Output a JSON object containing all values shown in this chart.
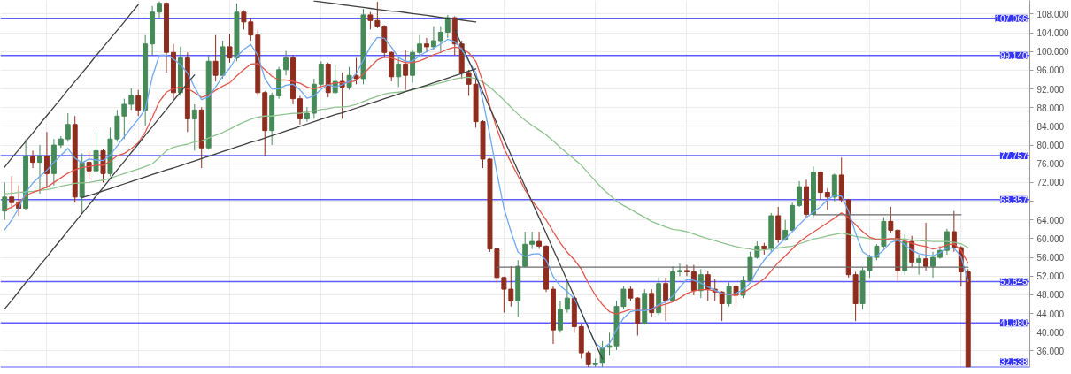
{
  "chart_data": {
    "type": "candlestick",
    "categories": [
      null,
      null,
      null,
      null,
      null,
      null,
      null,
      null,
      null,
      null,
      null,
      null,
      null,
      null,
      null,
      null,
      null,
      null,
      null,
      null,
      null,
      null,
      null,
      null,
      null,
      null,
      null,
      null,
      null,
      null,
      null,
      null,
      null,
      null,
      null,
      null,
      null,
      null,
      null,
      null,
      null,
      null,
      null,
      null,
      null,
      null,
      null,
      null,
      null,
      null,
      null,
      null,
      null,
      null,
      null,
      null,
      null,
      null,
      null,
      null,
      null,
      null,
      null,
      null,
      null,
      null,
      null,
      null,
      null,
      null,
      null,
      null,
      null,
      null,
      null,
      null,
      null,
      null,
      null,
      null,
      null,
      null,
      null,
      null,
      null,
      null,
      null,
      null,
      null,
      null,
      null,
      null,
      null,
      null,
      null,
      null,
      null,
      null,
      null,
      null,
      null,
      null,
      null,
      null,
      null,
      null,
      null,
      null,
      null,
      null,
      null,
      null,
      null,
      null,
      null,
      null,
      null,
      null,
      null,
      null,
      null,
      null,
      null,
      null,
      null,
      null,
      null,
      null,
      null,
      null,
      null,
      null,
      null,
      null,
      null,
      null,
      null,
      null
    ],
    "ohlc": [
      [
        65.9,
        72.0,
        64.0,
        68.9
      ],
      [
        68.9,
        73.3,
        66.5,
        67.7
      ],
      [
        67.7,
        71.4,
        64.9,
        66.5
      ],
      [
        66.5,
        81.3,
        66.2,
        77.6
      ],
      [
        77.6,
        78.8,
        75.1,
        76.3
      ],
      [
        76.3,
        80.0,
        69.6,
        77.6
      ],
      [
        77.6,
        82.8,
        70.8,
        73.9
      ],
      [
        73.9,
        81.3,
        71.4,
        80.0
      ],
      [
        80.0,
        81.9,
        79.4,
        81.3
      ],
      [
        81.3,
        86.8,
        80.7,
        84.4
      ],
      [
        84.4,
        86.2,
        67.7,
        68.9
      ],
      [
        68.9,
        78.2,
        65.2,
        76.3
      ],
      [
        76.3,
        78.8,
        72.6,
        74.5
      ],
      [
        74.5,
        82.8,
        73.9,
        78.8
      ],
      [
        78.8,
        79.1,
        72.0,
        73.9
      ],
      [
        73.9,
        83.7,
        73.3,
        81.3
      ],
      [
        81.3,
        87.5,
        80.7,
        86.2
      ],
      [
        86.2,
        89.9,
        81.3,
        88.7
      ],
      [
        88.7,
        92.1,
        87.5,
        90.5
      ],
      [
        90.5,
        91.8,
        86.2,
        87.5
      ],
      [
        87.5,
        103.5,
        84.1,
        101.6
      ],
      [
        101.6,
        109.7,
        99.2,
        108.4
      ],
      [
        108.4,
        110.7,
        107.2,
        110.3
      ],
      [
        110.3,
        110.5,
        95.5,
        99.8
      ],
      [
        99.8,
        101.6,
        89.9,
        91.2
      ],
      [
        91.2,
        101.0,
        90.5,
        98.6
      ],
      [
        98.6,
        99.8,
        82.8,
        85.6
      ],
      [
        85.6,
        88.7,
        78.8,
        87.5
      ],
      [
        87.5,
        88.1,
        75.1,
        79.4
      ],
      [
        79.4,
        99.2,
        79.1,
        97.9
      ],
      [
        97.9,
        103.5,
        93.6,
        94.9
      ],
      [
        94.9,
        102.3,
        94.2,
        101.0
      ],
      [
        101.0,
        103.8,
        97.6,
        98.6
      ],
      [
        98.6,
        110.3,
        97.9,
        108.4
      ],
      [
        108.4,
        108.8,
        104.7,
        106.3
      ],
      [
        106.3,
        107.2,
        102.3,
        103.5
      ],
      [
        103.5,
        104.7,
        90.5,
        91.2
      ],
      [
        91.2,
        91.5,
        77.6,
        83.1
      ],
      [
        83.1,
        91.2,
        80.0,
        90.5
      ],
      [
        90.5,
        96.7,
        89.9,
        96.1
      ],
      [
        96.1,
        100.1,
        94.9,
        98.6
      ],
      [
        98.6,
        99.2,
        88.7,
        89.9
      ],
      [
        89.9,
        90.5,
        84.4,
        85.6
      ],
      [
        85.6,
        88.1,
        85.0,
        86.8
      ],
      [
        86.8,
        94.2,
        85.6,
        93.0
      ],
      [
        93.0,
        97.9,
        92.4,
        97.3
      ],
      [
        97.3,
        97.6,
        90.2,
        91.2
      ],
      [
        91.2,
        97.0,
        90.9,
        93.6
      ],
      [
        93.6,
        95.5,
        85.6,
        92.4
      ],
      [
        92.4,
        96.7,
        91.8,
        94.9
      ],
      [
        94.9,
        98.6,
        93.0,
        94.2
      ],
      [
        94.2,
        109.1,
        93.0,
        107.8
      ],
      [
        107.8,
        108.4,
        104.7,
        106.6
      ],
      [
        106.6,
        110.6,
        105.0,
        105.4
      ],
      [
        105.4,
        105.6,
        98.6,
        99.8
      ],
      [
        99.8,
        100.0,
        93.6,
        94.6
      ],
      [
        94.6,
        98.6,
        92.4,
        97.3
      ],
      [
        97.3,
        100.4,
        91.8,
        94.9
      ],
      [
        94.9,
        100.4,
        93.3,
        99.8
      ],
      [
        99.8,
        103.5,
        99.2,
        101.6
      ],
      [
        101.6,
        102.9,
        99.8,
        101.0
      ],
      [
        101.0,
        105.4,
        100.4,
        102.3
      ],
      [
        102.3,
        105.4,
        99.8,
        104.1
      ],
      [
        104.1,
        107.8,
        102.9,
        107.2
      ],
      [
        107.2,
        107.5,
        99.2,
        101.6
      ],
      [
        101.6,
        102.3,
        94.2,
        95.5
      ],
      [
        95.5,
        96.1,
        90.5,
        93.0
      ],
      [
        93.0,
        94.2,
        83.7,
        85.0
      ],
      [
        85.0,
        85.3,
        75.1,
        77.0
      ],
      [
        77.0,
        77.2,
        57.2,
        57.8
      ],
      [
        57.8,
        58.0,
        50.4,
        51.7
      ],
      [
        51.7,
        51.9,
        44.2,
        49.2
      ],
      [
        49.2,
        54.1,
        45.5,
        46.7
      ],
      [
        46.7,
        55.4,
        43.3,
        54.1
      ],
      [
        54.1,
        61.5,
        53.9,
        58.8
      ],
      [
        58.8,
        61.5,
        57.8,
        59.4
      ],
      [
        59.4,
        61.5,
        57.8,
        58.4
      ],
      [
        58.4,
        58.6,
        48.6,
        49.2
      ],
      [
        49.2,
        49.8,
        37.5,
        40.5
      ],
      [
        40.5,
        46.7,
        39.9,
        44.9
      ],
      [
        44.9,
        50.7,
        44.2,
        47.3
      ],
      [
        47.3,
        47.5,
        39.9,
        41.2
      ],
      [
        41.2,
        41.8,
        34.4,
        35.6
      ],
      [
        35.6,
        36.0,
        32.6,
        33.1
      ],
      [
        33.1,
        34.4,
        32.6,
        33.4
      ],
      [
        33.4,
        38.1,
        32.6,
        36.8
      ],
      [
        36.8,
        39.9,
        35.0,
        37.1
      ],
      [
        37.1,
        46.7,
        36.2,
        45.5
      ],
      [
        45.5,
        49.8,
        44.9,
        49.2
      ],
      [
        49.2,
        49.8,
        46.7,
        47.3
      ],
      [
        47.3,
        47.5,
        39.3,
        41.8
      ],
      [
        41.8,
        49.2,
        41.6,
        48.3
      ],
      [
        48.3,
        49.2,
        43.3,
        44.2
      ],
      [
        44.2,
        51.7,
        43.6,
        50.4
      ],
      [
        50.4,
        51.7,
        42.4,
        46.7
      ],
      [
        46.7,
        54.1,
        46.5,
        52.9
      ],
      [
        52.9,
        54.7,
        52.0,
        53.2
      ],
      [
        53.2,
        54.4,
        52.0,
        52.9
      ],
      [
        52.9,
        54.4,
        47.9,
        48.9
      ],
      [
        48.9,
        53.5,
        47.3,
        52.3
      ],
      [
        52.3,
        53.2,
        46.7,
        49.2
      ],
      [
        49.2,
        51.3,
        46.7,
        48.6
      ],
      [
        48.6,
        48.8,
        42.4,
        46.1
      ],
      [
        46.1,
        50.7,
        45.5,
        49.8
      ],
      [
        49.8,
        50.4,
        45.5,
        47.9
      ],
      [
        47.9,
        52.0,
        47.3,
        51.0
      ],
      [
        51.0,
        57.2,
        50.7,
        56.0
      ],
      [
        56.0,
        59.4,
        55.7,
        58.4
      ],
      [
        58.4,
        59.1,
        56.6,
        57.8
      ],
      [
        57.8,
        65.5,
        57.2,
        64.9
      ],
      [
        64.9,
        66.8,
        59.1,
        59.7
      ],
      [
        59.7,
        64.0,
        59.5,
        61.8
      ],
      [
        61.8,
        67.7,
        61.6,
        67.1
      ],
      [
        67.1,
        72.3,
        66.8,
        71.1
      ],
      [
        71.1,
        72.6,
        64.6,
        65.2
      ],
      [
        65.2,
        75.4,
        64.6,
        74.2
      ],
      [
        74.2,
        74.4,
        68.3,
        69.9
      ],
      [
        69.9,
        70.8,
        66.2,
        68.9
      ],
      [
        68.9,
        73.9,
        68.0,
        73.6
      ],
      [
        73.6,
        77.3,
        67.7,
        68.3
      ],
      [
        68.3,
        68.5,
        51.7,
        52.3
      ],
      [
        52.3,
        52.9,
        42.4,
        46.1
      ],
      [
        46.1,
        53.8,
        44.9,
        53.2
      ],
      [
        53.2,
        56.6,
        51.7,
        56.0
      ],
      [
        56.0,
        58.8,
        55.4,
        58.4
      ],
      [
        58.4,
        64.6,
        57.8,
        63.7
      ],
      [
        63.7,
        66.8,
        61.2,
        61.8
      ],
      [
        61.8,
        62.0,
        51.0,
        53.2
      ],
      [
        53.2,
        60.9,
        52.3,
        59.4
      ],
      [
        59.4,
        60.6,
        53.8,
        55.0
      ],
      [
        55.0,
        56.6,
        52.3,
        55.7
      ],
      [
        55.7,
        63.4,
        53.2,
        54.1
      ],
      [
        54.1,
        57.2,
        51.7,
        56.0
      ],
      [
        56.0,
        58.4,
        55.7,
        57.5
      ],
      [
        57.5,
        62.1,
        56.6,
        61.5
      ],
      [
        61.5,
        65.9,
        57.2,
        58.1
      ],
      [
        58.1,
        58.4,
        49.8,
        52.9
      ],
      [
        52.9,
        53.5,
        32.6,
        32.6
      ]
    ],
    "colors": [
      "#458a58",
      "#8e2d1e",
      "#8e2d1e",
      "#458a58",
      "#8e2d1e",
      "#458a58",
      "#8e2d1e",
      "#458a58",
      "#458a58",
      "#458a58",
      "#8e2d1e",
      "#458a58",
      "#8e2d1e",
      "#458a58",
      "#8e2d1e",
      "#458a58",
      "#458a58",
      "#458a58",
      "#458a58",
      "#8e2d1e",
      "#458a58",
      "#458a58",
      "#458a58",
      "#8e2d1e",
      "#8e2d1e",
      "#458a58",
      "#8e2d1e",
      "#458a58",
      "#8e2d1e",
      "#458a58",
      "#8e2d1e",
      "#458a58",
      "#8e2d1e",
      "#458a58",
      "#8e2d1e",
      "#8e2d1e",
      "#8e2d1e",
      "#8e2d1e",
      "#458a58",
      "#458a58",
      "#458a58",
      "#8e2d1e",
      "#8e2d1e",
      "#458a58",
      "#458a58",
      "#458a58",
      "#8e2d1e",
      "#458a58",
      "#8e2d1e",
      "#458a58",
      "#8e2d1e",
      "#458a58",
      "#8e2d1e",
      "#8e2d1e",
      "#8e2d1e",
      "#8e2d1e",
      "#458a58",
      "#8e2d1e",
      "#458a58",
      "#458a58",
      "#8e2d1e",
      "#458a58",
      "#458a58",
      "#458a58",
      "#8e2d1e",
      "#8e2d1e",
      "#8e2d1e",
      "#8e2d1e",
      "#8e2d1e",
      "#8e2d1e",
      "#8e2d1e",
      "#8e2d1e",
      "#8e2d1e",
      "#458a58",
      "#458a58",
      "#458a58",
      "#8e2d1e",
      "#8e2d1e",
      "#8e2d1e",
      "#458a58",
      "#458a58",
      "#8e2d1e",
      "#8e2d1e",
      "#8e2d1e",
      "#458a58",
      "#458a58",
      "#458a58",
      "#458a58",
      "#458a58",
      "#8e2d1e",
      "#8e2d1e",
      "#458a58",
      "#8e2d1e",
      "#458a58",
      "#8e2d1e",
      "#458a58",
      "#458a58",
      "#8e2d1e",
      "#8e2d1e",
      "#458a58",
      "#8e2d1e",
      "#8e2d1e",
      "#8e2d1e",
      "#458a58",
      "#8e2d1e",
      "#458a58",
      "#458a58",
      "#458a58",
      "#8e2d1e",
      "#458a58",
      "#8e2d1e",
      "#458a58",
      "#458a58",
      "#458a58",
      "#8e2d1e",
      "#458a58",
      "#8e2d1e",
      "#8e2d1e",
      "#458a58",
      "#8e2d1e",
      "#8e2d1e",
      "#8e2d1e",
      "#458a58",
      "#458a58",
      "#458a58",
      "#458a58",
      "#8e2d1e",
      "#8e2d1e",
      "#458a58",
      "#8e2d1e",
      "#458a58",
      "#8e2d1e",
      "#458a58",
      "#458a58",
      "#458a58",
      "#8e2d1e",
      "#8e2d1e",
      "#8e2d1e"
    ],
    "series": [
      {
        "type": "line",
        "color": "#8fc48f",
        "values": [
          69.6,
          69.7,
          69.9,
          70.0,
          70.1,
          70.3,
          70.5,
          70.8,
          71.2,
          71.5,
          71.8,
          71.9,
          72.0,
          72.3,
          72.5,
          72.9,
          73.4,
          73.9,
          74.4,
          74.9,
          75.4,
          76.0,
          77.3,
          78.8,
          79.5,
          79.9,
          80.2,
          80.7,
          80.9,
          81.5,
          82.1,
          82.7,
          83.4,
          84.2,
          84.9,
          85.5,
          86.0,
          86.2,
          86.2,
          86.4,
          86.6,
          86.8,
          86.8,
          87.1,
          87.3,
          87.6,
          87.8,
          88.1,
          88.1,
          88.3,
          88.7,
          89.3,
          89.9,
          90.4,
          90.9,
          91.2,
          91.3,
          91.5,
          91.8,
          92.2,
          92.6,
          92.9,
          93.3,
          93.7,
          94.1,
          94.4,
          94.5,
          94.2,
          93.5,
          92.4,
          91.0,
          89.6,
          88.1,
          86.6,
          85.3,
          84.2,
          83.2,
          82.2,
          80.9,
          79.5,
          78.2,
          77.0,
          75.7,
          74.0,
          72.3,
          70.7,
          69.4,
          68.0,
          67.1,
          66.3,
          65.4,
          64.6,
          63.7,
          63.1,
          62.5,
          62.0,
          61.8,
          61.5,
          61.0,
          60.5,
          60.0,
          59.6,
          59.1,
          58.7,
          58.3,
          58.0,
          57.8,
          57.5,
          57.6,
          57.8,
          58.0,
          58.2,
          58.4,
          58.9,
          59.4,
          59.9,
          60.2,
          60.6,
          60.9,
          61.2,
          60.9,
          60.5,
          60.3,
          60.0,
          59.9,
          59.9,
          59.9,
          59.9,
          59.9,
          59.7,
          59.6,
          59.5,
          59.4,
          59.4,
          59.4,
          59.2,
          58.9,
          58.1
        ]
      },
      {
        "type": "line",
        "color": "#e2574c",
        "values": [
          66.1,
          66.7,
          67.7,
          69.2,
          69.9,
          70.4,
          71.0,
          72.0,
          73.0,
          74.0,
          74.7,
          75.2,
          75.4,
          75.7,
          75.7,
          76.5,
          77.7,
          78.2,
          79.2,
          80.5,
          82.8,
          85.9,
          89.3,
          91.3,
          92.1,
          92.4,
          92.1,
          91.2,
          90.2,
          90.7,
          91.7,
          92.6,
          93.3,
          94.8,
          96.1,
          97.3,
          97.4,
          96.1,
          94.7,
          93.9,
          93.9,
          93.6,
          93.2,
          92.4,
          92.0,
          92.5,
          92.9,
          93.3,
          93.3,
          93.4,
          93.8,
          95.2,
          96.7,
          98.2,
          98.8,
          98.6,
          98.1,
          97.6,
          97.6,
          98.0,
          98.6,
          99.3,
          99.8,
          100.5,
          100.9,
          100.7,
          99.7,
          97.9,
          93.5,
          88.3,
          83.4,
          79.3,
          76.3,
          73.4,
          70.4,
          68.1,
          66.2,
          64.0,
          61.5,
          59.1,
          57.1,
          55.5,
          53.5,
          50.5,
          47.9,
          45.9,
          44.4,
          43.9,
          44.4,
          44.9,
          45.0,
          44.9,
          44.9,
          45.6,
          46.0,
          46.5,
          47.3,
          48.3,
          48.8,
          49.1,
          49.1,
          48.8,
          48.3,
          48.0,
          47.9,
          48.4,
          49.4,
          50.4,
          51.4,
          53.1,
          54.9,
          56.3,
          57.8,
          59.3,
          60.4,
          61.4,
          62.4,
          63.4,
          64.4,
          65.5,
          64.5,
          63.0,
          61.5,
          60.3,
          59.8,
          59.8,
          60.0,
          60.0,
          59.5,
          59.0,
          58.6,
          58.3,
          57.8,
          58.1,
          58.7,
          58.9,
          57.5,
          54.8
        ]
      },
      {
        "type": "line",
        "color": "#6fa8f0",
        "values": [
          61.9,
          64.0,
          66.5,
          69.9,
          71.9,
          73.3,
          74.6,
          76.3,
          77.8,
          79.3,
          77.2,
          76.2,
          77.0,
          76.8,
          76.7,
          77.8,
          79.8,
          81.8,
          83.7,
          85.5,
          87.7,
          94.6,
          99.2,
          99.2,
          98.4,
          97.2,
          95.4,
          92.4,
          89.7,
          90.3,
          92.4,
          94.7,
          96.4,
          98.9,
          100.4,
          101.5,
          99.2,
          94.2,
          92.0,
          92.0,
          92.8,
          93.0,
          91.8,
          90.0,
          90.5,
          91.9,
          92.9,
          92.4,
          92.9,
          93.6,
          95.3,
          98.1,
          101.0,
          103.0,
          102.8,
          100.9,
          98.7,
          97.9,
          97.9,
          99.1,
          100.0,
          100.7,
          101.6,
          102.6,
          102.1,
          100.4,
          97.9,
          95.5,
          89.6,
          82.1,
          74.0,
          66.5,
          61.5,
          57.1,
          56.2,
          56.7,
          56.8,
          55.4,
          51.9,
          49.9,
          48.7,
          47.2,
          44.2,
          40.8,
          37.7,
          36.5,
          37.6,
          40.5,
          43.0,
          44.4,
          44.7,
          44.6,
          44.9,
          45.9,
          46.5,
          47.7,
          49.6,
          51.3,
          51.1,
          50.5,
          49.7,
          49.0,
          48.3,
          48.0,
          48.3,
          49.1,
          50.5,
          53.2,
          55.4,
          57.1,
          58.6,
          60.0,
          61.5,
          63.0,
          64.5,
          65.7,
          66.8,
          68.3,
          69.3,
          69.1,
          65.9,
          61.2,
          57.2,
          56.2,
          56.3,
          57.6,
          59.2,
          59.7,
          58.7,
          57.5,
          56.8,
          56.5,
          56.3,
          57.0,
          58.0,
          58.0,
          56.2,
          50.9
        ]
      },
      {
        "type": "line",
        "color": "#404040",
        "values": [
          75.3,
          77.2,
          79.0,
          80.8,
          82.6,
          84.5,
          86.3,
          88.1,
          89.9,
          91.8,
          93.6,
          95.4,
          97.2,
          99.1,
          100.9,
          102.7,
          104.5,
          106.3,
          108.2,
          110.0,
          null,
          null,
          null,
          null,
          null,
          null,
          null,
          null,
          null,
          null,
          null,
          null,
          null,
          null,
          null,
          null,
          null,
          null,
          null,
          null,
          null,
          null,
          null,
          null,
          null,
          null,
          null,
          null,
          null,
          null,
          null,
          null,
          null,
          null,
          null,
          null,
          null,
          null,
          null,
          null,
          null,
          null,
          null,
          null,
          null,
          null,
          null,
          null,
          null,
          null,
          null,
          null,
          null,
          null,
          null,
          null,
          null,
          null,
          null,
          null,
          null,
          null,
          null,
          null,
          null,
          null,
          null,
          null,
          null,
          null,
          null,
          null,
          null,
          null,
          null,
          null,
          null,
          null,
          null,
          null,
          null,
          null,
          null,
          null,
          null,
          null,
          null,
          null,
          null,
          null,
          null,
          null,
          null,
          null,
          null,
          null,
          null,
          null,
          null,
          null,
          null,
          null,
          null,
          null,
          null,
          null,
          null,
          null,
          null,
          null,
          null,
          null,
          null,
          null,
          null,
          null,
          null,
          null
        ]
      },
      {
        "type": "line",
        "color": "#404040",
        "values": [
          45.0,
          46.8,
          48.7,
          50.6,
          52.4,
          54.3,
          56.1,
          58.0,
          59.8,
          61.7,
          63.5,
          65.4,
          67.2,
          69.1,
          70.9,
          72.8,
          74.7,
          76.5,
          78.4,
          80.2,
          82.1,
          83.9,
          85.8,
          87.6,
          89.5,
          91.3,
          93.2,
          95.0,
          null,
          null,
          null,
          null,
          null,
          null,
          null,
          null,
          null,
          null,
          null,
          null,
          null,
          null,
          null,
          null,
          null,
          null,
          null,
          null,
          null,
          null,
          null,
          null,
          null,
          null,
          null,
          null,
          null,
          null,
          null,
          null,
          null,
          null,
          null,
          null,
          null,
          null,
          null,
          null,
          null,
          null,
          null,
          null,
          null,
          null,
          null,
          null,
          null,
          null,
          null,
          null,
          null,
          null,
          null,
          null,
          null,
          null,
          null,
          null,
          null,
          null,
          null,
          null,
          null,
          null,
          null,
          null,
          null,
          null,
          null,
          null,
          null,
          null,
          null,
          null,
          null,
          null,
          null,
          null,
          null,
          null,
          null,
          null,
          null,
          null,
          null,
          null,
          null,
          null,
          null,
          null,
          null,
          null,
          null,
          null,
          null,
          null,
          null,
          null,
          null,
          null,
          null,
          null,
          null,
          null,
          null,
          null,
          null,
          null
        ]
      },
      {
        "type": "line",
        "color": "#404040",
        "values": [
          null,
          null,
          null,
          null,
          null,
          null,
          null,
          null,
          null,
          null,
          null,
          68.8,
          69.2,
          69.7,
          70.2,
          70.7,
          71.2,
          71.7,
          72.2,
          72.7,
          73.2,
          73.7,
          74.2,
          74.7,
          75.1,
          75.6,
          76.1,
          76.6,
          77.1,
          77.6,
          78.1,
          78.6,
          79.1,
          79.6,
          80.1,
          80.6,
          81.0,
          81.5,
          82.0,
          82.5,
          83.0,
          83.5,
          84.0,
          84.5,
          85.0,
          85.5,
          86.0,
          86.5,
          86.9,
          87.4,
          87.9,
          88.4,
          88.9,
          89.4,
          89.9,
          90.4,
          90.9,
          91.4,
          91.9,
          92.3,
          92.8,
          93.3,
          93.8,
          94.3,
          94.8,
          95.3,
          95.8,
          96.3,
          null,
          null,
          null,
          null,
          null,
          null,
          null,
          null,
          null,
          null,
          null,
          null,
          null,
          null,
          null,
          null,
          null,
          null,
          null,
          null,
          null,
          null,
          null,
          null,
          null,
          null,
          null,
          null,
          null,
          null,
          null,
          null,
          null,
          null,
          null,
          null,
          null,
          null,
          null,
          null,
          null,
          null,
          null,
          null,
          null,
          null,
          null,
          null,
          null,
          null,
          null,
          null,
          null,
          null,
          null,
          null,
          null,
          null,
          null,
          null,
          null,
          null,
          null,
          null,
          null,
          null,
          null,
          null,
          null,
          null
        ]
      },
      {
        "type": "line",
        "color": "#404040",
        "values": [
          null,
          null,
          null,
          null,
          null,
          null,
          null,
          null,
          null,
          null,
          null,
          null,
          null,
          null,
          null,
          null,
          null,
          null,
          null,
          null,
          null,
          null,
          null,
          null,
          null,
          null,
          null,
          null,
          null,
          null,
          null,
          null,
          null,
          null,
          null,
          null,
          null,
          null,
          null,
          null,
          null,
          null,
          null,
          null,
          110.8,
          110.6,
          110.4,
          110.2,
          110.0,
          109.8,
          109.6,
          109.4,
          109.2,
          109.0,
          108.8,
          108.6,
          108.5,
          108.3,
          108.1,
          107.9,
          107.7,
          107.5,
          107.3,
          107.1,
          106.9,
          106.7,
          106.5,
          106.3,
          null,
          null,
          null,
          null,
          null,
          null,
          null,
          null,
          null,
          null,
          null,
          null,
          null,
          null,
          null,
          null,
          null,
          null,
          null,
          null,
          null,
          null,
          null,
          null,
          null,
          null,
          null,
          null,
          null,
          null,
          null,
          null,
          null,
          null,
          null,
          null,
          null,
          null,
          null,
          null,
          null,
          null,
          null,
          null,
          null,
          null,
          null,
          null,
          null,
          null,
          null,
          null,
          null,
          null,
          null,
          null,
          null,
          null,
          null,
          null,
          null,
          null,
          null,
          null,
          null,
          null,
          null,
          null,
          null,
          null
        ]
      },
      {
        "type": "line",
        "color": "#404040",
        "values": [
          null,
          null,
          null,
          null,
          null,
          null,
          null,
          null,
          null,
          null,
          null,
          null,
          null,
          null,
          null,
          null,
          null,
          null,
          null,
          null,
          null,
          null,
          null,
          null,
          null,
          null,
          null,
          null,
          null,
          null,
          null,
          null,
          null,
          null,
          null,
          null,
          null,
          null,
          null,
          null,
          null,
          null,
          null,
          null,
          null,
          null,
          null,
          null,
          null,
          null,
          null,
          null,
          null,
          null,
          null,
          null,
          null,
          null,
          null,
          null,
          null,
          null,
          null,
          null,
          104.7,
          101.3,
          98.0,
          94.6,
          91.3,
          87.9,
          84.6,
          81.2,
          77.9,
          74.5,
          71.2,
          67.8,
          64.5,
          61.1,
          57.7,
          54.4,
          51.0,
          47.7,
          44.3,
          41.0,
          37.6,
          34.3,
          null,
          null,
          null,
          null,
          null,
          null,
          null,
          null,
          null,
          null,
          null,
          null,
          null,
          null,
          null,
          null,
          null,
          null,
          null,
          null,
          null,
          null,
          null,
          null,
          null,
          null,
          null,
          null,
          null,
          null,
          null,
          null,
          null,
          null,
          null,
          null,
          null,
          null,
          null,
          null,
          null,
          null,
          null,
          null,
          null,
          null,
          null,
          null,
          null,
          null,
          null,
          null
        ]
      },
      {
        "type": "line",
        "color": "#6b6b6b",
        "values": [
          null,
          null,
          null,
          null,
          null,
          null,
          null,
          null,
          null,
          null,
          null,
          null,
          null,
          null,
          null,
          null,
          null,
          null,
          null,
          null,
          null,
          null,
          null,
          null,
          null,
          null,
          null,
          null,
          null,
          null,
          null,
          null,
          null,
          null,
          null,
          null,
          null,
          null,
          null,
          null,
          null,
          null,
          null,
          null,
          null,
          null,
          null,
          null,
          null,
          null,
          null,
          null,
          null,
          null,
          null,
          null,
          null,
          null,
          null,
          null,
          null,
          null,
          null,
          null,
          null,
          null,
          null,
          null,
          null,
          null,
          53.9,
          53.9,
          53.9,
          53.9,
          53.9,
          53.9,
          53.9,
          53.9,
          53.9,
          53.9,
          53.9,
          53.9,
          53.9,
          53.9,
          53.9,
          53.9,
          53.9,
          53.9,
          53.9,
          53.9,
          53.9,
          53.9,
          53.9,
          53.9,
          53.9,
          53.9,
          53.9,
          53.9,
          53.9,
          53.9,
          53.9,
          53.9,
          53.9,
          53.9,
          53.9,
          53.9,
          53.9,
          53.9,
          53.9,
          53.9,
          53.9,
          53.9,
          53.9,
          53.9,
          53.9,
          53.9,
          53.9,
          53.9,
          53.9,
          53.9,
          53.9,
          53.9,
          53.9,
          53.9,
          53.9,
          53.9,
          53.9,
          53.9,
          53.9,
          53.9,
          53.9,
          53.9,
          53.9,
          53.9,
          53.9,
          53.9,
          53.9,
          53.9
        ]
      },
      {
        "type": "line",
        "color": "#6b6b6b",
        "values": [
          null,
          null,
          null,
          null,
          null,
          null,
          null,
          null,
          null,
          null,
          null,
          null,
          null,
          null,
          null,
          null,
          null,
          null,
          null,
          null,
          null,
          null,
          null,
          null,
          null,
          null,
          null,
          null,
          null,
          null,
          null,
          null,
          null,
          null,
          null,
          null,
          null,
          null,
          null,
          null,
          null,
          null,
          null,
          null,
          null,
          null,
          null,
          null,
          null,
          null,
          null,
          null,
          null,
          null,
          null,
          null,
          null,
          null,
          null,
          null,
          null,
          null,
          null,
          null,
          null,
          null,
          null,
          null,
          null,
          null,
          null,
          null,
          null,
          null,
          null,
          null,
          null,
          null,
          null,
          null,
          null,
          null,
          null,
          null,
          null,
          null,
          null,
          null,
          null,
          null,
          null,
          null,
          null,
          null,
          null,
          null,
          null,
          null,
          null,
          null,
          null,
          null,
          null,
          null,
          null,
          null,
          null,
          null,
          null,
          null,
          null,
          null,
          null,
          null,
          null,
          65.1,
          65.1,
          65.1,
          65.1,
          65.1,
          65.1,
          65.1,
          65.1,
          65.1,
          65.1,
          65.1,
          65.1,
          65.1,
          65.1,
          65.1,
          65.1,
          65.1,
          65.1,
          65.1,
          65.1,
          65.1,
          65.1,
          null
        ]
      }
    ],
    "ylim": [
      32.5,
      110.9
    ],
    "yticks": [
      {
        "value": 36,
        "label": "36.000"
      },
      {
        "value": 40,
        "label": "40.000"
      },
      {
        "value": 44,
        "label": "44.000"
      },
      {
        "value": 48,
        "label": "48.000"
      },
      {
        "value": 52,
        "label": "52.000"
      },
      {
        "value": 56,
        "label": "56.000"
      },
      {
        "value": 60,
        "label": "60.000"
      },
      {
        "value": 64,
        "label": "64.000"
      },
      {
        "value": 68,
        "label": null
      },
      {
        "value": 72,
        "label": "72.000"
      },
      {
        "value": 76,
        "label": "76.000"
      },
      {
        "value": 80,
        "label": "80.000"
      },
      {
        "value": 84,
        "label": "84.000"
      },
      {
        "value": 88,
        "label": "88.000"
      },
      {
        "value": 92,
        "label": "92.000"
      },
      {
        "value": 96,
        "label": "96.000"
      },
      {
        "value": 100,
        "label": "100.000"
      },
      {
        "value": 104,
        "label": "104.000"
      },
      {
        "value": 108,
        "label": "108.000"
      }
    ],
    "ref_lines": [
      {
        "axis": "y",
        "value": 107.066,
        "label": "107.066",
        "color": "#3434ff"
      },
      {
        "axis": "y",
        "value": 99.14,
        "label": "99.140",
        "color": "#3434ff"
      },
      {
        "axis": "y",
        "value": 77.757,
        "label": "77.757",
        "color": "#3434ff"
      },
      {
        "axis": "y",
        "value": 68.357,
        "label": "68.357",
        "color": "#3434ff"
      },
      {
        "axis": "y",
        "value": 50.845,
        "label": "50.845",
        "color": "#3434ff"
      },
      {
        "axis": "y",
        "value": 41.98,
        "label": "41.980",
        "color": "#3434ff"
      },
      {
        "axis": "y",
        "value": 32.538,
        "label": "32.538",
        "color": "#3434ff"
      }
    ],
    "grid": true
  }
}
